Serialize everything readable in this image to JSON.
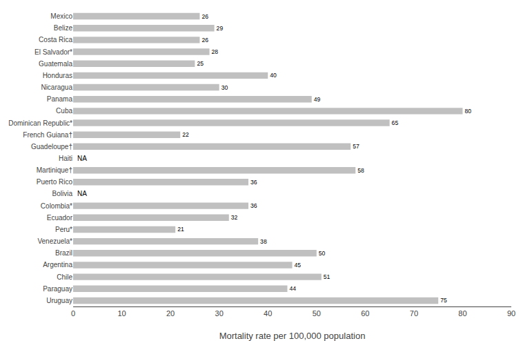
{
  "chart_data": {
    "type": "bar",
    "orientation": "horizontal",
    "categories": [
      "Mexico",
      "Belize",
      "Costa Rica",
      "El Salvador*",
      "Guatemala",
      "Honduras",
      "Nicaragua",
      "Panama",
      "Cuba",
      "Dominican Republic*",
      "French Guiana†",
      "Guadeloupe†",
      "Haiti",
      "Martinique†",
      "Puerto Rico",
      "Bolivia",
      "Colombia*",
      "Ecuador",
      "Peru*",
      "Venezuela*",
      "Brazil",
      "Argentina",
      "Chile",
      "Paraguay",
      "Uruguay"
    ],
    "values": [
      26,
      29,
      26,
      28,
      25,
      40,
      30,
      49,
      80,
      65,
      22,
      57,
      null,
      58,
      36,
      null,
      36,
      32,
      21,
      38,
      50,
      45,
      51,
      44,
      75
    ],
    "value_labels": [
      "26",
      "29",
      "26",
      "28",
      "25",
      "40",
      "30",
      "49",
      "80",
      "65",
      "22",
      "57",
      "NA",
      "58",
      "36",
      "NA",
      "36",
      "32",
      "21",
      "38",
      "50",
      "45",
      "51",
      "44",
      "75"
    ],
    "data_labels": true,
    "color": "#c0c0c0",
    "xlabel": "Mortality rate per 100,000 population",
    "xlim": [
      0,
      90
    ],
    "xticks": [
      0,
      10,
      20,
      30,
      40,
      50,
      60,
      70,
      80,
      90
    ],
    "grid": false
  }
}
